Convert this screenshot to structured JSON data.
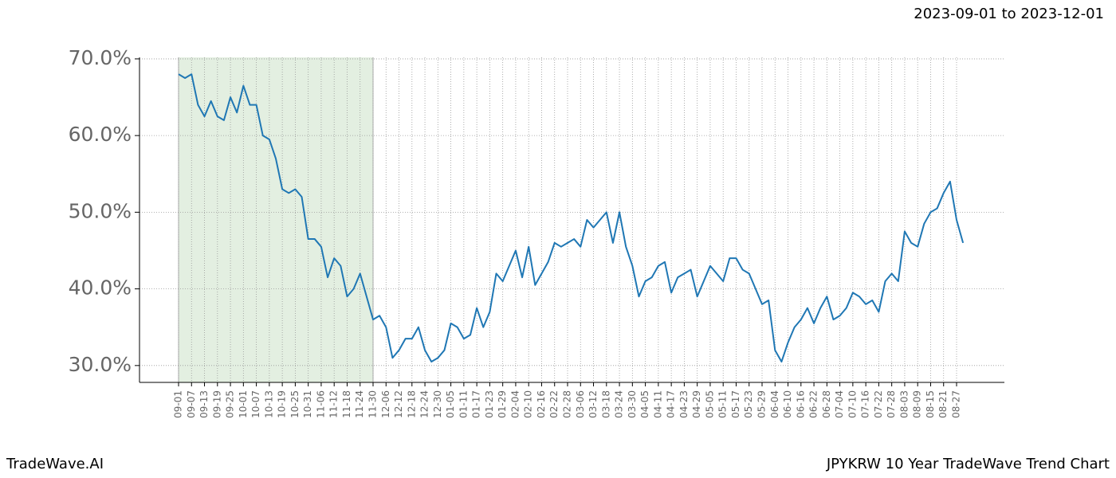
{
  "chart_data": {
    "type": "line",
    "title": "2023-09-01 to 2023-12-01",
    "footer_left": "TradeWave.AI",
    "footer_right": "JPYKRW 10 Year TradeWave Trend Chart",
    "categories": [
      "09-01",
      null,
      "09-07",
      null,
      "09-13",
      null,
      "09-19",
      null,
      "09-25",
      null,
      "10-01",
      null,
      "10-07",
      null,
      "10-13",
      null,
      "10-19",
      null,
      "10-25",
      null,
      "10-31",
      null,
      "11-06",
      null,
      "11-12",
      null,
      "11-18",
      null,
      "11-24",
      null,
      "11-30",
      null,
      "12-06",
      null,
      "12-12",
      null,
      "12-18",
      null,
      "12-24",
      null,
      "12-30",
      null,
      "01-05",
      null,
      "01-11",
      null,
      "01-17",
      null,
      "01-23",
      null,
      "01-29",
      null,
      "02-04",
      null,
      "02-10",
      null,
      "02-16",
      null,
      "02-22",
      null,
      "02-28",
      null,
      "03-06",
      null,
      "03-12",
      null,
      "03-18",
      null,
      "03-24",
      null,
      "03-30",
      null,
      "04-05",
      null,
      "04-11",
      null,
      "04-17",
      null,
      "04-23",
      null,
      "04-29",
      null,
      "05-05",
      null,
      "05-11",
      null,
      "05-17",
      null,
      "05-23",
      null,
      "05-29",
      null,
      "06-04",
      null,
      "06-10",
      null,
      "06-16",
      null,
      "06-22",
      null,
      "06-28",
      null,
      "07-04",
      null,
      "07-10",
      null,
      "07-16",
      null,
      "07-22",
      null,
      "07-28",
      null,
      "08-03",
      null,
      "08-09",
      null,
      "08-15",
      null,
      "08-21",
      null,
      "08-27",
      null
    ],
    "series": [
      {
        "name": "JPYKRW",
        "color": "#1f77b4",
        "values": [
          68,
          67.5,
          68,
          64,
          62.5,
          64.5,
          62.5,
          62,
          65,
          63,
          66.5,
          64,
          64,
          60,
          59.5,
          57,
          53,
          52.5,
          53,
          52,
          46.5,
          46.5,
          45.5,
          41.5,
          44,
          43,
          39,
          40,
          42,
          39,
          36,
          36.5,
          35,
          31,
          32,
          33.5,
          33.5,
          35,
          32,
          30.5,
          31,
          32,
          35.5,
          35,
          33.5,
          34,
          37.5,
          35,
          37,
          42,
          41,
          43,
          45,
          41.5,
          45.5,
          40.5,
          42,
          43.5,
          46,
          45.5,
          46,
          46.5,
          45.5,
          49,
          48,
          49,
          50,
          46,
          50,
          45.5,
          43,
          39,
          41,
          41.5,
          43,
          43.5,
          39.5,
          41.5,
          42,
          42.5,
          39,
          41,
          43,
          42,
          41,
          44,
          44,
          42.5,
          42,
          40,
          38,
          38.5,
          32,
          30.5,
          33,
          35,
          36,
          37.5,
          35.5,
          37.5,
          39,
          36,
          36.5,
          37.5,
          39.5,
          39,
          38,
          38.5,
          37,
          41,
          42,
          41,
          47.5,
          46,
          45.5,
          48.5,
          50,
          50.5,
          52.5,
          54,
          49,
          46
        ]
      }
    ],
    "shaded_span": [
      0,
      30
    ],
    "ylim": [
      27.8,
      70.2
    ],
    "yticks": [
      {
        "value": 30,
        "label": "30.0%"
      },
      {
        "value": 40,
        "label": "40.0%"
      },
      {
        "value": 50,
        "label": "50.0%"
      },
      {
        "value": 60,
        "label": "60.0%"
      },
      {
        "value": 70,
        "label": "70.0%"
      }
    ],
    "grid": true
  }
}
